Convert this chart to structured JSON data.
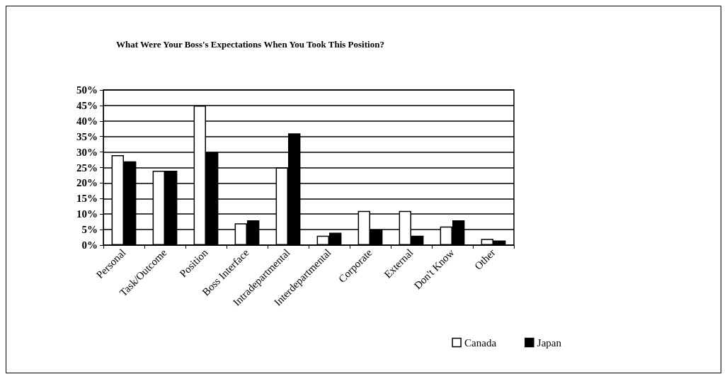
{
  "chart_data": {
    "type": "bar",
    "title": "What Were Your Boss's Expectations When You Took This Position?",
    "categories": [
      "Personal",
      "Task/Outcome",
      "Position",
      "Boss Interface",
      "Intradepartmental",
      "Interdepartmental",
      "Corporate",
      "External",
      "Don't Know",
      "Other"
    ],
    "series": [
      {
        "name": "Canada",
        "color": "#ffffff",
        "values": [
          29,
          24,
          45,
          7,
          25,
          3,
          11,
          11,
          6,
          2
        ]
      },
      {
        "name": "Japan",
        "color": "#000000",
        "values": [
          27,
          24,
          30,
          8,
          36,
          4,
          5,
          3,
          8,
          1.5
        ]
      }
    ],
    "ylim": [
      0,
      50
    ],
    "yticks": [
      {
        "value": 0,
        "label": "0%"
      },
      {
        "value": 5,
        "label": "5%"
      },
      {
        "value": 10,
        "label": "10%"
      },
      {
        "value": 15,
        "label": "15%"
      },
      {
        "value": 20,
        "label": "20%"
      },
      {
        "value": 25,
        "label": "25%"
      },
      {
        "value": 30,
        "label": "30%"
      },
      {
        "value": 35,
        "label": "35%"
      },
      {
        "value": 40,
        "label": "40%"
      },
      {
        "value": 45,
        "label": "45%"
      },
      {
        "value": 50,
        "label": "50%"
      }
    ],
    "grid": "y",
    "legend": "bottom right"
  }
}
